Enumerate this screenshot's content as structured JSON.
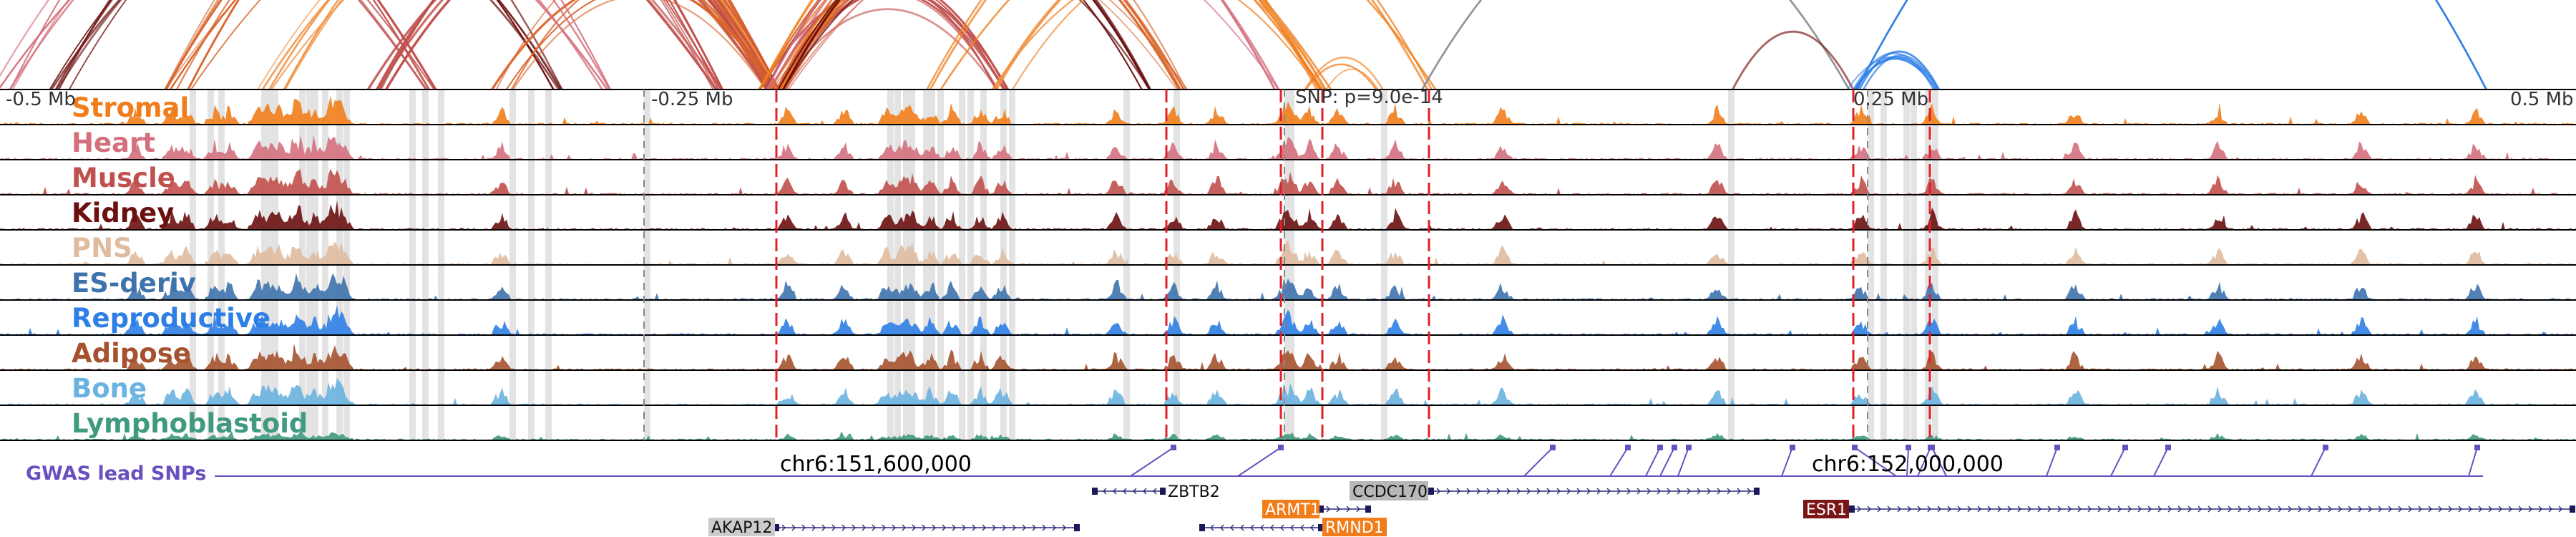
{
  "tracks": [
    {
      "label": "Stromal",
      "color": "#f07d1a"
    },
    {
      "label": "Heart",
      "color": "#d46f7d"
    },
    {
      "label": "Muscle",
      "color": "#c0504d"
    },
    {
      "label": "Kidney",
      "color": "#6b0f0f"
    },
    {
      "label": "PNS",
      "color": "#dfbb9f"
    },
    {
      "label": "ES-deriv",
      "color": "#3e72ad"
    },
    {
      "label": "Reproductive",
      "color": "#2d7fe6"
    },
    {
      "label": "Adipose",
      "color": "#a5522f"
    },
    {
      "label": "Bone",
      "color": "#6ab3e0"
    },
    {
      "label": "Lymphoblastoid",
      "color": "#3f9a80"
    }
  ],
  "ruler": {
    "left": "-0.5 Mb",
    "mid_left": "-0.25 Mb",
    "snp_label": "SNP: p=9.0e-14",
    "mid_right": "0.25 Mb",
    "right": "0.5 Mb"
  },
  "coordinates": [
    "chr6:151,600,000",
    "chr6:152,000,000"
  ],
  "gwas": {
    "label": "GWAS lead SNPs",
    "color": "#6a4fc0"
  },
  "genes": [
    {
      "name": "ZBTB2",
      "highlight": "none",
      "color": ""
    },
    {
      "name": "CCDC170",
      "highlight": "gray",
      "color": "#b8b8b8"
    },
    {
      "name": "ARMT1",
      "highlight": "orange",
      "color": "#f07d1a"
    },
    {
      "name": "RMND1",
      "highlight": "orange",
      "color": "#f07d1a"
    },
    {
      "name": "AKAP12",
      "highlight": "gray",
      "color": "#cccccc"
    },
    {
      "name": "ESR1",
      "highlight": "darkred",
      "color": "#7a1616"
    }
  ]
}
